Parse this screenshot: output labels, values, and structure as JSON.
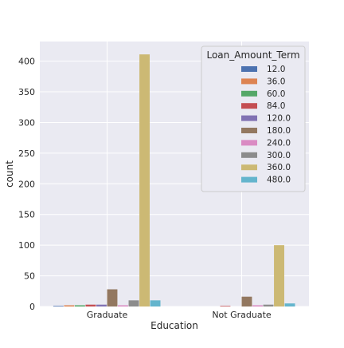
{
  "chart_data": {
    "type": "bar",
    "title": "",
    "xlabel": "Education",
    "ylabel": "count",
    "categories": [
      "Graduate",
      "Not Graduate"
    ],
    "ylim": [
      0,
      432
    ],
    "yticks": [
      0,
      50,
      100,
      150,
      200,
      250,
      300,
      350,
      400
    ],
    "grid": true,
    "legend": {
      "title": "Loan_Amount_Term",
      "placement": "top-right"
    },
    "series": [
      {
        "name": "12.0",
        "color": "#4c72b0",
        "values": [
          1,
          0
        ]
      },
      {
        "name": "36.0",
        "color": "#dd8452",
        "values": [
          2,
          0
        ]
      },
      {
        "name": "60.0",
        "color": "#55a868",
        "values": [
          2,
          0
        ]
      },
      {
        "name": "84.0",
        "color": "#c44e52",
        "values": [
          3,
          1
        ]
      },
      {
        "name": "120.0",
        "color": "#8172b3",
        "values": [
          3,
          0
        ]
      },
      {
        "name": "180.0",
        "color": "#937860",
        "values": [
          28,
          16
        ]
      },
      {
        "name": "240.0",
        "color": "#da8bc3",
        "values": [
          2,
          2
        ]
      },
      {
        "name": "300.0",
        "color": "#8c8c8c",
        "values": [
          10,
          3
        ]
      },
      {
        "name": "360.0",
        "color": "#ccb974",
        "values": [
          411,
          100
        ]
      },
      {
        "name": "480.0",
        "color": "#64b5cd",
        "values": [
          10,
          5
        ]
      }
    ]
  }
}
